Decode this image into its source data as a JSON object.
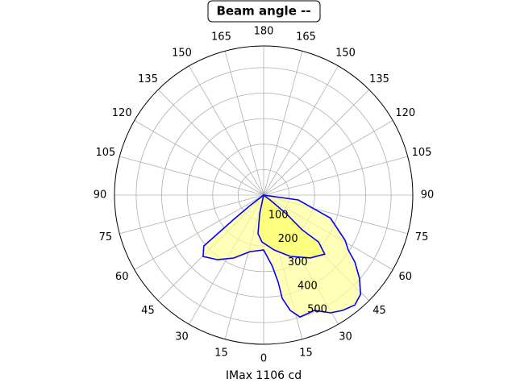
{
  "chart_data": {
    "type": "polar",
    "title": "Beam angle --",
    "xlabel": "IMax 1106 cd",
    "theta_zero": "bottom",
    "rlim": [
      0,
      585
    ],
    "rticks": [
      100,
      200,
      300,
      400,
      500
    ],
    "xticks": [
      0,
      15,
      30,
      45,
      60,
      75,
      90,
      105,
      120,
      135,
      150,
      165,
      180,
      {
        "value": 195,
        "label": "165"
      },
      {
        "value": 210,
        "label": "150"
      },
      {
        "value": 225,
        "label": "135"
      },
      {
        "value": 240,
        "label": "120"
      },
      {
        "value": 255,
        "label": "105"
      },
      {
        "value": 270,
        "label": "90"
      },
      {
        "value": 285,
        "label": "75"
      },
      {
        "value": 300,
        "label": "60"
      },
      {
        "value": 315,
        "label": "45"
      },
      {
        "value": 330,
        "label": "30"
      },
      {
        "value": 345,
        "label": "15"
      }
    ],
    "grid": true,
    "series": [
      {
        "color": "#0000ff",
        "fill": "#ffff99",
        "x": [
          0,
          82,
          71,
          61,
          57,
          53.7,
          49,
          44.3,
          39.7,
          34.4,
          29.6,
          23.8,
          16.6,
          13,
          10.2,
          9.5,
          7,
          0,
          -13.6,
          -25.4,
          -35.5,
          -44.6,
          -49.6,
          -50,
          -51,
          -52.6,
          0
        ],
        "values": [
          0,
          137,
          277,
          365,
          396,
          444,
          498,
          544,
          560,
          548,
          531,
          494,
          499,
          464,
          411,
          347,
          281,
          215,
          228,
          273,
          311,
          338,
          308,
          236,
          151,
          68,
          0
        ]
      },
      {
        "color": "#0000ff",
        "fill": "#ffff66",
        "x": [
          0,
          -12,
          -8.3,
          -2,
          10.8,
          23.5,
          36.6,
          46,
          49.5,
          48,
          50.6,
          53,
          0
        ],
        "values": [
          0,
          74,
          153,
          184,
          219,
          262,
          307,
          333,
          283,
          204,
          115,
          32,
          0
        ]
      }
    ]
  }
}
